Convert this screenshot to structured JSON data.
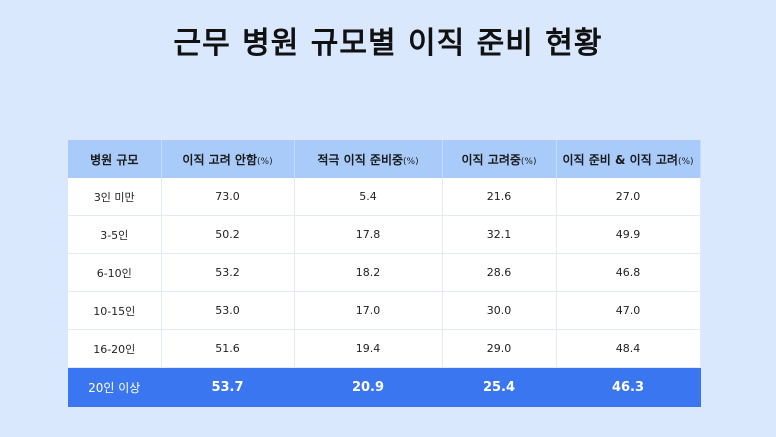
{
  "page": {
    "title": "근무 병원 규모별 이직 준비 현황"
  },
  "chart_data": {
    "type": "table",
    "title": "근무 병원 규모별 이직 준비 현황",
    "columns": [
      {
        "label": "병원 규모",
        "unit": ""
      },
      {
        "label": "이직 고려 안함",
        "unit": "(%)"
      },
      {
        "label": "적극 이직 준비중",
        "unit": "(%)"
      },
      {
        "label": "이직 고려중",
        "unit": "(%)"
      },
      {
        "label": "이직 준비 & 이직 고려",
        "unit": "(%)"
      }
    ],
    "rows": [
      [
        "3인 미만",
        "73.0",
        "5.4",
        "21.6",
        "27.0"
      ],
      [
        "3-5인",
        "50.2",
        "17.8",
        "32.1",
        "49.9"
      ],
      [
        "6-10인",
        "53.2",
        "18.2",
        "28.6",
        "46.8"
      ],
      [
        "10-15인",
        "53.0",
        "17.0",
        "30.0",
        "47.0"
      ],
      [
        "16-20인",
        "51.6",
        "19.4",
        "29.0",
        "48.4"
      ],
      [
        "20인 이상",
        "53.7",
        "20.9",
        "25.4",
        "46.3"
      ]
    ],
    "highlight_row": 5,
    "colors": {
      "header": "#a9cbfa",
      "highlight": "#3a76ef",
      "background": "#dae8fd"
    }
  }
}
